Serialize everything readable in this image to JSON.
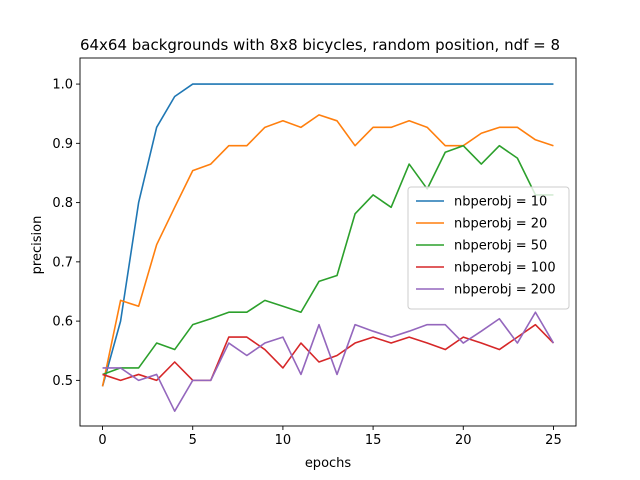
{
  "chart_data": {
    "type": "line",
    "title": "64x64 backgrounds with 8x8 bicycles, random position, ndf = 8",
    "xlabel": "epochs",
    "ylabel": "precision",
    "xlim": [
      -1.25,
      26.25
    ],
    "ylim": [
      0.423,
      1.044
    ],
    "xticks": [
      0,
      5,
      10,
      15,
      20,
      25
    ],
    "yticks": [
      0.5,
      0.6,
      0.7,
      0.8,
      0.9,
      1.0
    ],
    "xtick_labels": [
      "0",
      "5",
      "10",
      "15",
      "20",
      "25"
    ],
    "ytick_labels": [
      "0.5",
      "0.6",
      "0.7",
      "0.8",
      "0.9",
      "1.0"
    ],
    "grid": false,
    "legend_position": "center-right",
    "x": [
      0,
      1,
      2,
      3,
      4,
      5,
      6,
      7,
      8,
      9,
      10,
      11,
      12,
      13,
      14,
      15,
      16,
      17,
      18,
      19,
      20,
      21,
      22,
      23,
      24,
      25
    ],
    "series": [
      {
        "name": "nbperobj = 10",
        "color": "#1f77b4",
        "values": [
          0.49,
          0.6,
          0.8,
          0.927,
          0.979,
          1.0,
          1.0,
          1.0,
          1.0,
          1.0,
          1.0,
          1.0,
          1.0,
          1.0,
          1.0,
          1.0,
          1.0,
          1.0,
          1.0,
          1.0,
          1.0,
          1.0,
          1.0,
          1.0,
          1.0,
          1.0
        ]
      },
      {
        "name": "nbperobj = 20",
        "color": "#ff7f0e",
        "values": [
          0.49,
          0.635,
          0.625,
          0.729,
          0.792,
          0.854,
          0.865,
          0.896,
          0.896,
          0.927,
          0.938,
          0.927,
          0.948,
          0.938,
          0.896,
          0.927,
          0.927,
          0.938,
          0.927,
          0.896,
          0.896,
          0.917,
          0.927,
          0.927,
          0.906,
          0.896
        ]
      },
      {
        "name": "nbperobj = 50",
        "color": "#2ca02c",
        "values": [
          0.51,
          0.521,
          0.521,
          0.563,
          0.552,
          0.594,
          0.604,
          0.615,
          0.615,
          0.635,
          0.625,
          0.615,
          0.667,
          0.677,
          0.781,
          0.813,
          0.792,
          0.865,
          0.823,
          0.885,
          0.896,
          0.865,
          0.896,
          0.875,
          0.813,
          0.813
        ]
      },
      {
        "name": "nbperobj = 100",
        "color": "#d62728",
        "values": [
          0.51,
          0.5,
          0.51,
          0.5,
          0.531,
          0.5,
          0.5,
          0.573,
          0.573,
          0.552,
          0.521,
          0.563,
          0.531,
          0.542,
          0.563,
          0.573,
          0.563,
          0.573,
          0.563,
          0.552,
          0.573,
          0.563,
          0.552,
          0.573,
          0.594,
          0.563
        ]
      },
      {
        "name": "nbperobj = 200",
        "color": "#9467bd",
        "values": [
          0.521,
          0.521,
          0.5,
          0.51,
          0.448,
          0.5,
          0.5,
          0.563,
          0.542,
          0.563,
          0.573,
          0.51,
          0.594,
          0.51,
          0.594,
          0.583,
          0.573,
          0.583,
          0.594,
          0.594,
          0.563,
          0.583,
          0.604,
          0.563,
          0.615,
          0.563
        ]
      }
    ]
  }
}
